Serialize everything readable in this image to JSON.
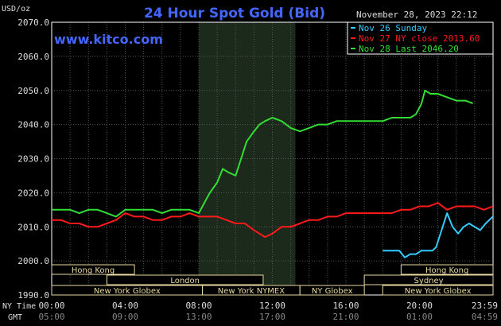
{
  "chart_data": {
    "type": "line",
    "title": "24 Hour Spot Gold (Bid)",
    "website": "www.kitco.com",
    "ylabel": "USD/oz",
    "timestamp": "November 28, 2023 22:12",
    "ylim": [
      1990,
      2070
    ],
    "y_ticks": [
      "2070.0",
      "2060.0",
      "2050.0",
      "2040.0",
      "2030.0",
      "2020.0",
      "2010.0",
      "2000.0",
      "1990.0"
    ],
    "xlim_hours": [
      0,
      24
    ],
    "x_ticks_label_ny": "NY Time",
    "x_ticks_label_gmt": "GMT",
    "x_ticks_ny": [
      "00:00",
      "04:00",
      "08:00",
      "12:00",
      "16:00",
      "20:00",
      "23:59"
    ],
    "x_ticks_gmt": [
      "05:00",
      "09:00",
      "13:00",
      "17:00",
      "21:00",
      "01:00",
      "04:59"
    ],
    "grid": true,
    "legend_position": "top-right",
    "highlight_hours": [
      8,
      13.25
    ],
    "series": [
      {
        "name": "Nov 26 Sunday",
        "color": "#33ccff",
        "x": [
          18,
          18.5,
          18.9,
          19.2,
          19.5,
          19.8,
          20.1,
          20.3,
          20.5,
          20.7,
          20.9,
          21.2,
          21.5,
          21.8,
          22.1,
          22.4,
          22.7,
          23.0,
          23.3,
          23.6,
          23.99
        ],
        "y": [
          2003,
          2003,
          2003,
          2001,
          2002,
          2002,
          2003,
          2003,
          2003,
          2003,
          2004,
          2009,
          2014,
          2010,
          2008,
          2010,
          2011,
          2010,
          2009,
          2011,
          2013
        ]
      },
      {
        "name": "Nov 27 NY close 2013.60",
        "color": "#ff1a1a",
        "x": [
          0,
          0.5,
          1,
          1.5,
          2,
          2.5,
          3,
          3.5,
          4,
          4.5,
          5,
          5.5,
          6,
          6.5,
          7,
          7.5,
          8,
          8.5,
          9,
          9.5,
          10,
          10.5,
          11,
          11.3,
          11.6,
          12,
          12.5,
          13,
          13.5,
          14,
          14.5,
          15,
          15.5,
          16,
          16.5,
          17,
          17.5,
          18,
          18.5,
          19,
          19.5,
          20,
          20.5,
          21,
          21.5,
          22,
          22.5,
          23,
          23.5,
          23.99
        ],
        "y": [
          2012,
          2012,
          2011,
          2011,
          2010,
          2010,
          2011,
          2012,
          2014,
          2013,
          2013,
          2012,
          2012,
          2013,
          2013,
          2014,
          2013,
          2013,
          2013,
          2012,
          2011,
          2011,
          2009,
          2008,
          2007,
          2008,
          2010,
          2010,
          2011,
          2012,
          2012,
          2013,
          2013,
          2014,
          2014,
          2014,
          2014,
          2014,
          2014,
          2015,
          2015,
          2016,
          2016,
          2017,
          2015,
          2016,
          2016,
          2016,
          2015,
          2016
        ]
      },
      {
        "name": "Nov 28 Last 2046.20",
        "color": "#33dd33",
        "x": [
          0,
          0.5,
          1,
          1.5,
          2,
          2.5,
          3,
          3.5,
          4,
          4.5,
          5,
          5.5,
          6,
          6.5,
          7,
          7.5,
          8,
          8.3,
          8.6,
          9,
          9.3,
          9.6,
          10,
          10.3,
          10.6,
          11,
          11.3,
          11.6,
          12,
          12.5,
          13,
          13.5,
          14,
          14.5,
          15,
          15.5,
          16,
          16.5,
          17,
          17.5,
          18,
          18.5,
          19,
          19.5,
          19.8,
          20.1,
          20.3,
          20.6,
          21,
          21.5,
          22,
          22.5,
          22.9
        ],
        "y": [
          2015,
          2015,
          2015,
          2014,
          2015,
          2015,
          2014,
          2013,
          2015,
          2015,
          2015,
          2015,
          2014,
          2015,
          2015,
          2015,
          2014,
          2017,
          2020,
          2023,
          2027,
          2026,
          2025,
          2030,
          2035,
          2038,
          2040,
          2041,
          2042,
          2041,
          2039,
          2038,
          2039,
          2040,
          2040,
          2041,
          2041,
          2041,
          2041,
          2041,
          2041,
          2042,
          2042,
          2042,
          2043,
          2046,
          2050,
          2049,
          2049,
          2048,
          2047,
          2047,
          2046.2
        ]
      }
    ],
    "session_bars": [
      {
        "label": "Hong Kong",
        "start": 0,
        "end": 4.5,
        "row": 0
      },
      {
        "label": "Hong Kong",
        "start": 19,
        "end": 24,
        "row": 0
      },
      {
        "label": "London",
        "start": 3,
        "end": 11.5,
        "row": 1
      },
      {
        "label": "Sydney",
        "start": 17,
        "end": 24,
        "row": 1
      },
      {
        "label": "New York Globex",
        "start": 0,
        "end": 8.2,
        "row": 2
      },
      {
        "label": "New York NYMEX",
        "start": 8.2,
        "end": 13.5,
        "row": 2
      },
      {
        "label": "NY Globex",
        "start": 13.5,
        "end": 17,
        "row": 2
      },
      {
        "label": "New York Globex",
        "start": 18,
        "end": 24,
        "row": 2
      }
    ]
  }
}
